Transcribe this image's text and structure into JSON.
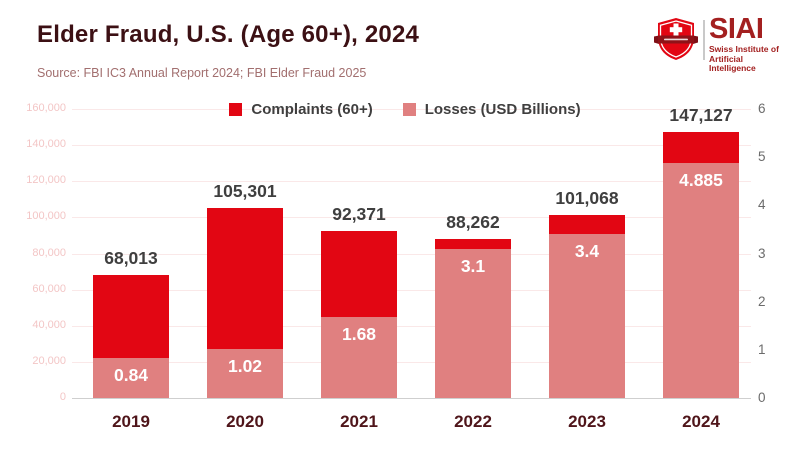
{
  "header": {
    "title": "Elder Fraud, U.S. (Age 60+), 2024",
    "source": "Source: FBI IC3 Annual Report 2024; FBI Elder Fraud 2025"
  },
  "logo": {
    "acronym": "SIAI",
    "line1": "Swiss Institute of",
    "line2": "Artificial Intelligence",
    "shield_icon": "swiss-shield-icon",
    "brand_red": "#e20613",
    "brand_dark_red": "#a32020"
  },
  "chart_data": {
    "type": "bar",
    "title": "Elder Fraud, U.S. (Age 60+), 2024",
    "categories": [
      "2019",
      "2020",
      "2021",
      "2022",
      "2023",
      "2024"
    ],
    "series": [
      {
        "name": "Complaints (60+)",
        "axis": "left",
        "color": "#e20613",
        "values": [
          68013,
          105301,
          92371,
          88262,
          101068,
          147127
        ],
        "labels": [
          "68,013",
          "105,301",
          "92,371",
          "88,262",
          "101,068",
          "147,127"
        ]
      },
      {
        "name": "Losses (USD Billions)",
        "axis": "right",
        "color": "#e08080",
        "values": [
          0.84,
          1.02,
          1.68,
          3.1,
          3.4,
          4.885
        ],
        "labels": [
          "0.84",
          "1.02",
          "1.68",
          "3.1",
          "3.4",
          "4.885"
        ]
      }
    ],
    "left_axis": {
      "min": 0,
      "max": 160000,
      "ticks": [
        "0",
        "20,000",
        "40,000",
        "60,000",
        "80,000",
        "100,000",
        "120,000",
        "140,000",
        "160,000"
      ]
    },
    "right_axis": {
      "min": 0,
      "max": 6,
      "ticks": [
        "0",
        "1",
        "2",
        "3",
        "4",
        "5",
        "6"
      ]
    },
    "grid": true,
    "legend_position": "top-center",
    "xlabel": "",
    "ylabel_left": "",
    "ylabel_right": ""
  }
}
